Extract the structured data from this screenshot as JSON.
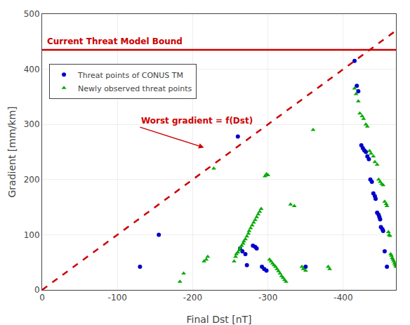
{
  "chart_data": {
    "type": "scatter",
    "x_label": "Final Dst [nT]",
    "y_label": "Gradient [mm/km]",
    "xlim": [
      0,
      -470
    ],
    "xticks": [
      0,
      -100,
      -200,
      -300,
      -400
    ],
    "ylim": [
      0,
      500
    ],
    "yticks": [
      0,
      100,
      200,
      300,
      400,
      500
    ],
    "grid": true,
    "legend": "upper left",
    "series": [
      {
        "name": "Threat points of CONUS TM",
        "type": "scatter",
        "marker": "circle",
        "color": "#0000cc",
        "x": [
          -130,
          -155,
          -260,
          -263,
          -266,
          -270,
          -272,
          -280,
          -283,
          -285,
          -292,
          -295,
          -298,
          -350,
          -415,
          -418,
          -420,
          -424,
          -426,
          -428,
          -430,
          -432,
          -434,
          -436,
          -438,
          -440,
          -442,
          -443,
          -445,
          -447,
          -448,
          -449,
          -450,
          -452,
          -453,
          -455,
          -458
        ],
        "values": [
          42,
          100,
          278,
          75,
          70,
          65,
          45,
          80,
          78,
          75,
          42,
          38,
          35,
          42,
          415,
          370,
          360,
          262,
          257,
          253,
          250,
          242,
          237,
          200,
          196,
          175,
          170,
          165,
          140,
          136,
          132,
          128,
          114,
          110,
          107,
          70,
          42
        ]
      },
      {
        "name": "Newly observed threat points",
        "type": "scatter",
        "marker": "triangle-up",
        "color": "#00aa00",
        "x": [
          -183,
          -188,
          -215,
          -218,
          -220,
          -228,
          -255,
          -257,
          -258,
          -260,
          -262,
          -263,
          -265,
          -267,
          -268,
          -270,
          -272,
          -274,
          -275,
          -277,
          -279,
          -281,
          -283,
          -285,
          -287,
          -289,
          -291,
          -296,
          -298,
          -300,
          -302,
          -304,
          -306,
          -308,
          -310,
          -312,
          -314,
          -316,
          -318,
          -320,
          -322,
          -324,
          -330,
          -335,
          -345,
          -347,
          -350,
          -360,
          -380,
          -382,
          -415,
          -417,
          -420,
          -422,
          -425,
          -427,
          -430,
          -432,
          -435,
          -437,
          -440,
          -442,
          -445,
          -447,
          -449,
          -451,
          -453,
          -455,
          -457,
          -458,
          -460,
          -461,
          -462,
          -463,
          -464,
          -465,
          -466,
          -467,
          -468,
          -469,
          -470
        ],
        "values": [
          15,
          30,
          52,
          55,
          60,
          220,
          52,
          60,
          65,
          68,
          72,
          76,
          80,
          84,
          88,
          92,
          97,
          102,
          107,
          112,
          117,
          122,
          127,
          132,
          137,
          142,
          147,
          206,
          210,
          208,
          55,
          52,
          48,
          45,
          42,
          38,
          34,
          30,
          25,
          22,
          18,
          15,
          155,
          152,
          42,
          38,
          35,
          290,
          42,
          38,
          365,
          355,
          342,
          320,
          315,
          310,
          300,
          296,
          252,
          247,
          242,
          232,
          227,
          200,
          196,
          192,
          190,
          160,
          156,
          152,
          105,
          100,
          98,
          65,
          62,
          58,
          55,
          52,
          48,
          45,
          42
        ]
      },
      {
        "type": "line",
        "line_style": "dashed",
        "color": "#cc0000",
        "x": [
          0,
          -470
        ],
        "values": [
          0,
          470
        ]
      }
    ],
    "reference_lines": [
      {
        "y": 435,
        "label": "Current Threat Model Bound",
        "color": "#cc0000",
        "line_style": "solid"
      }
    ],
    "annotations": [
      {
        "text": "Worst gradient = f(Dst)",
        "x": -215,
        "y": 258,
        "ax": -130,
        "ay": 295,
        "color": "#cc0000"
      }
    ]
  }
}
